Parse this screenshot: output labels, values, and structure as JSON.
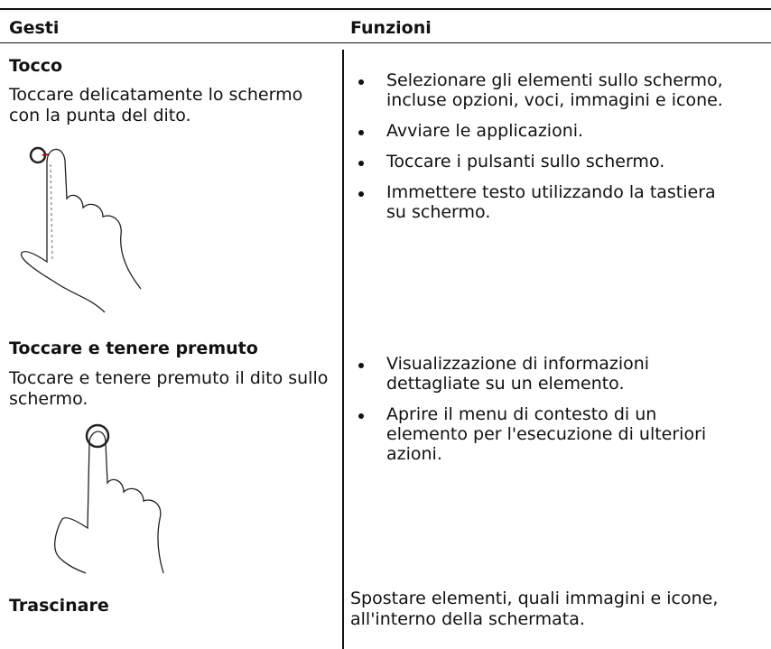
{
  "table": {
    "headers": [
      "Gesti",
      "Funzioni"
    ],
    "rows": [
      {
        "gesture": "Tocco",
        "description": "Toccare delicatamente lo schermo con la punta del dito.",
        "functions": [
          "Selezionare gli elementi sullo schermo, incluse opzioni, voci, immagini e icone.",
          "Avviare le applicazioni.",
          "Toccare i pulsanti sullo schermo.",
          "Immettere testo utilizzando la tastiera su schermo."
        ]
      },
      {
        "gesture": "Toccare e tenere premuto",
        "description": "Toccare e tenere premuto il dito sullo schermo.",
        "functions": [
          "Visualizzazione di informazioni dettagliate su un elemento.",
          "Aprire il menu di contesto di un elemento per l'esecuzione di ulteriori azioni."
        ]
      },
      {
        "gesture": "Trascinare",
        "function_text": "Spostare elementi, quali immagini e icone, all'interno della schermata."
      }
    ]
  }
}
